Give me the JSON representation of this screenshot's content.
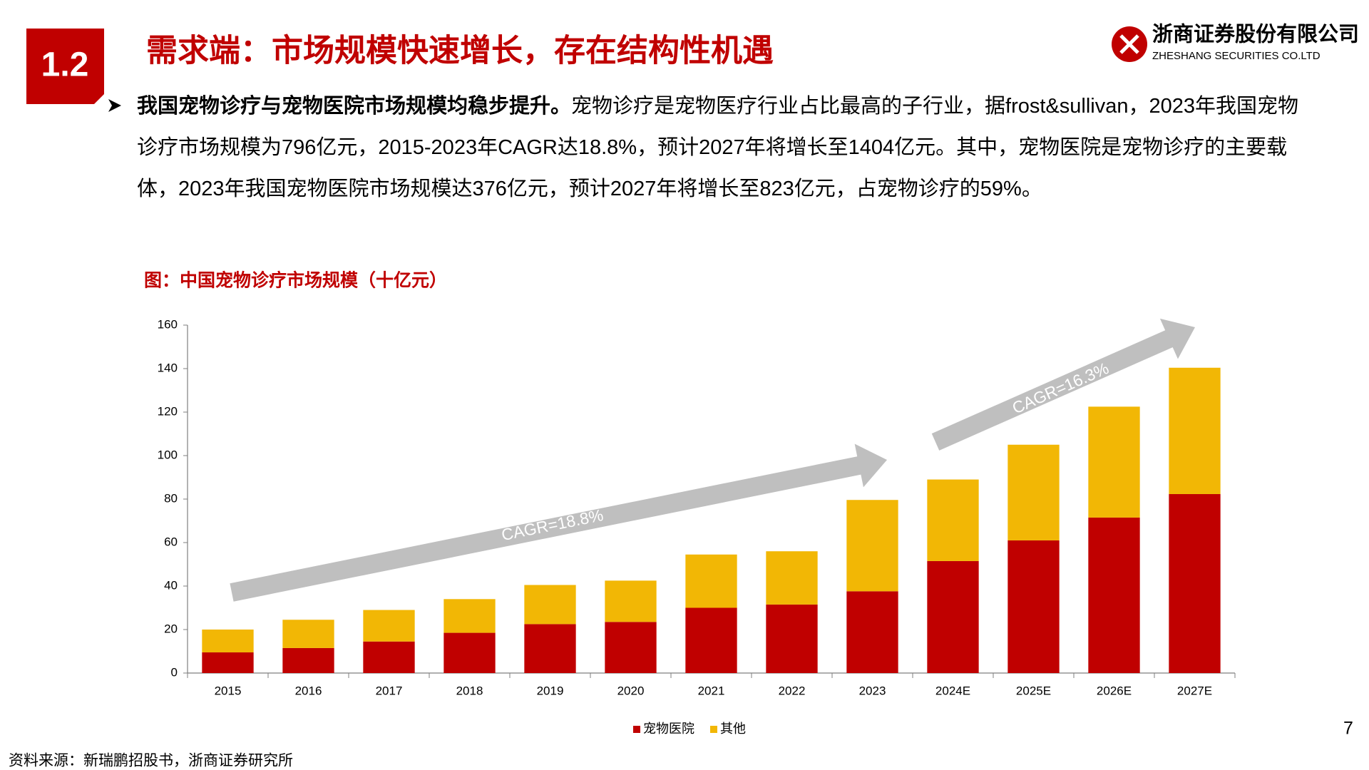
{
  "header": {
    "section_number": "1.2",
    "title": "需求端：市场规模快速增长，存在结构性机遇",
    "company_cn": "浙商证券股份有限公司",
    "company_en": "ZHESHANG SECURITIES CO.LTD"
  },
  "bullet": {
    "lead": "我国宠物诊疗与宠物医院市场规模均稳步提升。",
    "text": "宠物诊疗是宠物医疗行业占比最高的子行业，据frost&sullivan，2023年我国宠物诊疗市场规模为796亿元，2015-2023年CAGR达18.8%，预计2027年将增长至1404亿元。其中，宠物医院是宠物诊疗的主要载体，2023年我国宠物医院市场规模达376亿元，预计2027年将增长至823亿元，占宠物诊疗的59%。"
  },
  "chart_data": {
    "type": "bar",
    "stacked": true,
    "title": "图：中国宠物诊疗市场规模（十亿元）",
    "categories": [
      "2015",
      "2016",
      "2017",
      "2018",
      "2019",
      "2020",
      "2021",
      "2022",
      "2023",
      "2024E",
      "2025E",
      "2026E",
      "2027E"
    ],
    "series": [
      {
        "name": "宠物医院",
        "color": "#c00000",
        "values": [
          9.5,
          11.5,
          14.5,
          18.5,
          22.5,
          23.5,
          30,
          31.5,
          37.6,
          51.5,
          61,
          71.5,
          82.3
        ]
      },
      {
        "name": "其他",
        "color": "#f2b705",
        "values": [
          10.5,
          13,
          14.5,
          15.5,
          18,
          19,
          24.5,
          24.5,
          42,
          37.5,
          44,
          51,
          58.1
        ]
      }
    ],
    "ylim": [
      0,
      160
    ],
    "yticks": [
      0,
      20,
      40,
      60,
      80,
      100,
      120,
      140,
      160
    ],
    "grid": false,
    "legend": "bottom",
    "annotations": [
      "CAGR=18.8%",
      "CAGR=16.3%"
    ]
  },
  "page_number": "7",
  "source": "资料来源：新瑞鹏招股书，浙商证券研究所"
}
